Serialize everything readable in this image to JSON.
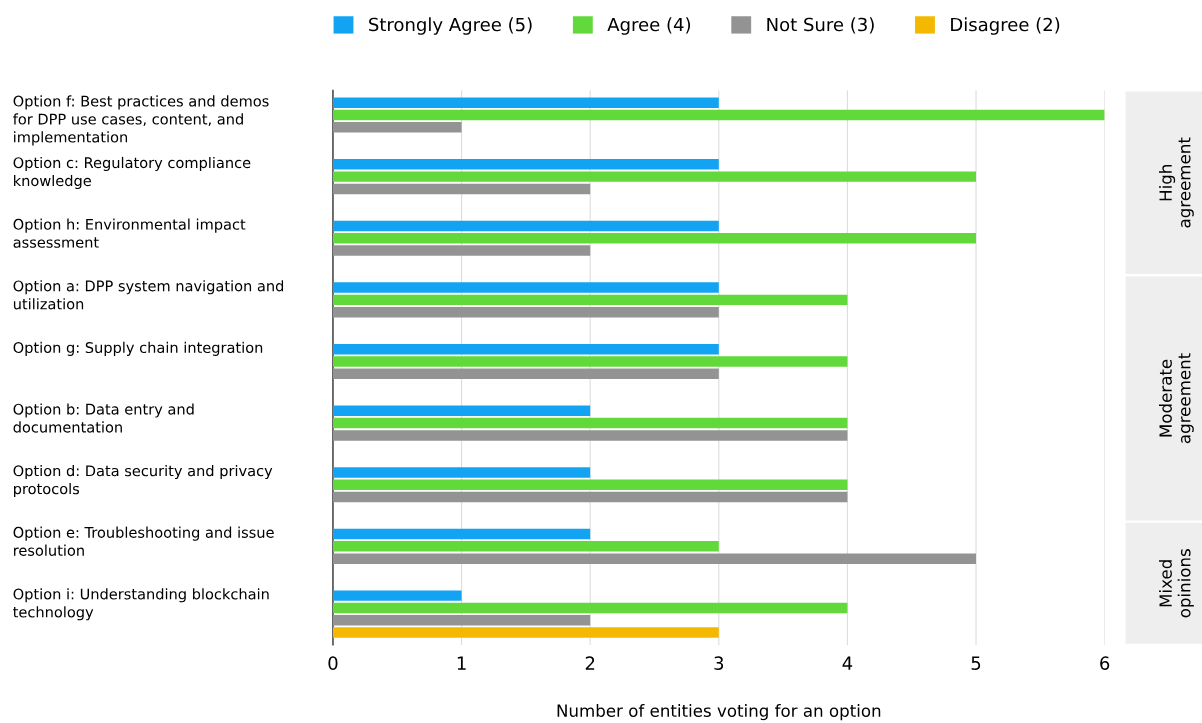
{
  "chart_data": {
    "type": "bar",
    "orientation": "horizontal",
    "categories": [
      "Option f: Best practices and demos for DPP use cases, content, and implementation",
      "Option c: Regulatory compliance knowledge",
      "Option h: Environmental impact assessment",
      "Option a: DPP system navigation and utilization",
      "Option g: Supply chain integration",
      "Option b: Data entry and documentation",
      "Option d: Data security and privacy protocols",
      "Option e: Troubleshooting and issue resolution",
      "Option i: Understanding blockchain technology"
    ],
    "series": [
      {
        "name": "Strongly Agree (5)",
        "color": "#12a4f2",
        "values": [
          3,
          3,
          3,
          3,
          3,
          2,
          2,
          2,
          1
        ]
      },
      {
        "name": "Agree (4)",
        "color": "#62d93a",
        "values": [
          6,
          5,
          5,
          4,
          4,
          4,
          4,
          3,
          4
        ]
      },
      {
        "name": "Not Sure (3)",
        "color": "#939393",
        "values": [
          1,
          2,
          2,
          3,
          3,
          4,
          4,
          5,
          2
        ]
      },
      {
        "name": "Disagree (2)",
        "color": "#f5b800",
        "values": [
          null,
          null,
          null,
          null,
          null,
          null,
          null,
          null,
          3
        ]
      }
    ],
    "xlabel": "Number of entities voting for an option",
    "xlim": [
      0,
      6
    ],
    "xticks": [
      0,
      1,
      2,
      3,
      4,
      5,
      6
    ],
    "grid": "x",
    "legend": "top",
    "annotations": [
      "High agreement",
      "Moderate agreement",
      "Mixed opinions"
    ]
  }
}
